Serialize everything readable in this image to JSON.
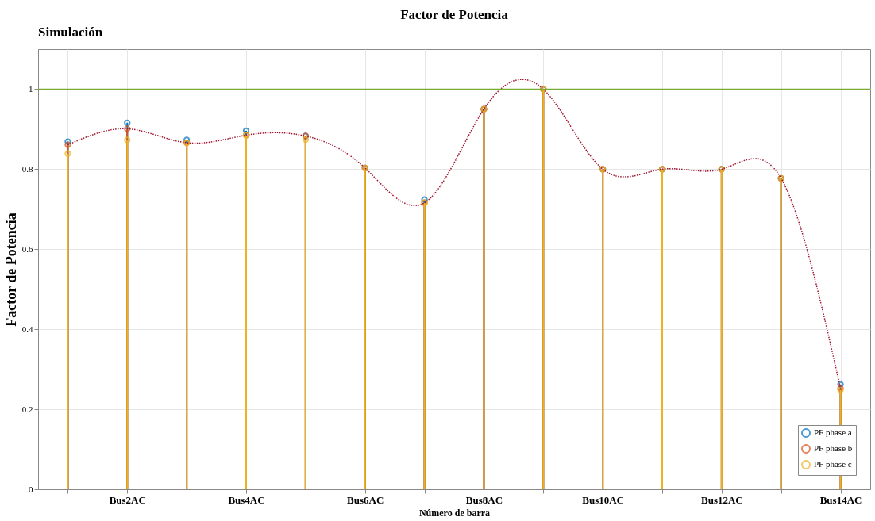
{
  "chart_data": {
    "type": "lollipop",
    "title": "Factor de Potencia",
    "xlabel": "Número de barra",
    "ylabel": "Factor de Potencia",
    "annotations": [
      "Simulación"
    ],
    "categories": [
      null,
      "Bus2AC",
      null,
      "Bus4AC",
      null,
      "Bus6AC",
      null,
      "Bus8AC",
      null,
      "Bus10AC",
      null,
      "Bus12AC",
      null,
      "Bus14AC"
    ],
    "series": [
      {
        "name": "PF phase a",
        "color": "#0072bd",
        "values": [
          0.869,
          0.916,
          0.873,
          0.896,
          0.883,
          0.803,
          0.724,
          0.95,
          1.0,
          0.8,
          0.8,
          0.8,
          0.777,
          0.262
        ]
      },
      {
        "name": "PF phase b",
        "color": "#d95319",
        "values": [
          0.861,
          0.901,
          0.866,
          0.885,
          0.883,
          0.803,
          0.716,
          0.95,
          1.0,
          0.8,
          0.8,
          0.8,
          0.777,
          0.252
        ]
      },
      {
        "name": "PF phase c",
        "color": "#edb120",
        "values": [
          0.839,
          0.873,
          0.866,
          0.885,
          0.874,
          0.803,
          0.716,
          0.95,
          1.0,
          0.8,
          0.8,
          0.8,
          0.777,
          0.248
        ]
      },
      {
        "type": "line",
        "color": "#a2142f",
        "line_style": "dotted",
        "marker": "none",
        "values": [
          0.861,
          0.901,
          0.866,
          0.885,
          0.883,
          0.803,
          0.716,
          0.95,
          1.0,
          0.8,
          0.8,
          0.8,
          0.777,
          0.252
        ]
      }
    ],
    "ylim": [
      0,
      1.1
    ],
    "yticks": [
      0,
      0.2,
      0.4,
      0.6,
      0.8,
      1
    ],
    "grid": true,
    "marker": "circle",
    "legend": "bottom right",
    "ref_lines": [
      {
        "axis": "y",
        "value": 1,
        "color": "#77ac30"
      }
    ]
  }
}
